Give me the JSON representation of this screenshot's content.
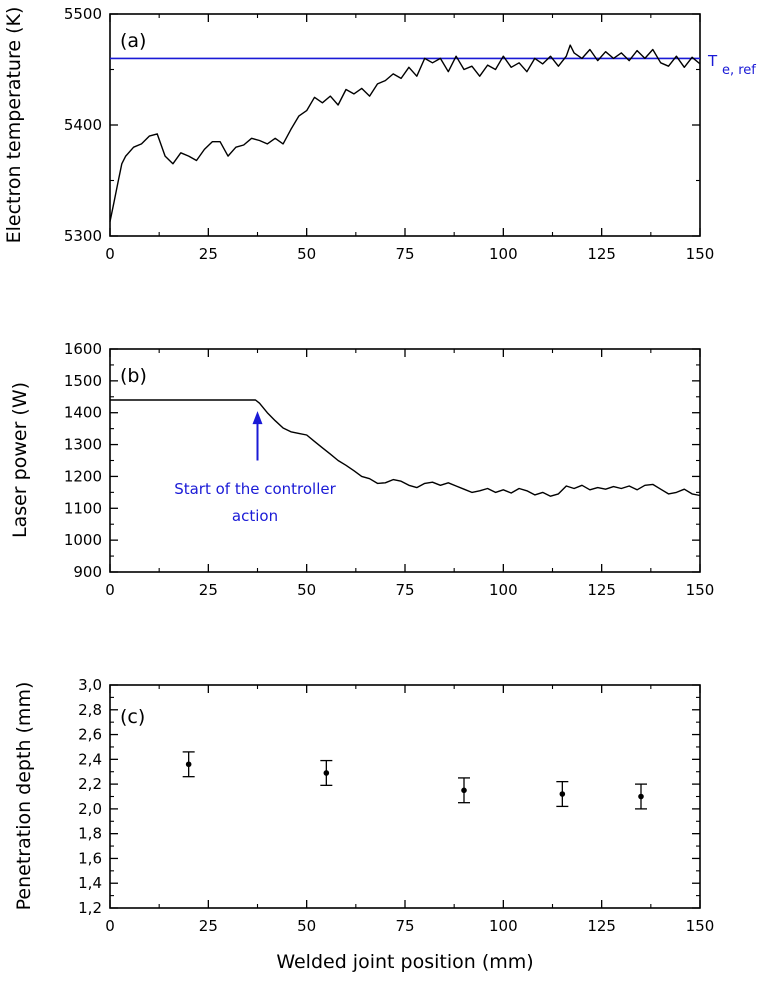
{
  "colors": {
    "reference": "#1a1ad6",
    "annotation": "#1a1ad6",
    "data": "#000000"
  },
  "xlabel": "Welded joint position (mm)",
  "chart_data": [
    {
      "type": "line",
      "panel_label": "(a)",
      "ylabel": "Electron temperature (K)",
      "xlim": [
        0,
        150
      ],
      "ylim": [
        5300,
        5500
      ],
      "xticks": [
        "0",
        "25",
        "50",
        "75",
        "100",
        "125",
        "150"
      ],
      "yticks": [
        "5300",
        "5400",
        "5500"
      ],
      "reference_line": {
        "y": 5460,
        "label_main": "T",
        "label_sub": "e, ref"
      },
      "series": [
        {
          "x": [
            0,
            1,
            2,
            3,
            4,
            6,
            8,
            10,
            12,
            14,
            16,
            18,
            20,
            22,
            24,
            26,
            28,
            30,
            32,
            34,
            36,
            38,
            40,
            42,
            44,
            46,
            48,
            50,
            52,
            54,
            56,
            58,
            60,
            62,
            64,
            66,
            68,
            70,
            72,
            74,
            76,
            78,
            80,
            82,
            84,
            86,
            88,
            90,
            92,
            94,
            96,
            98,
            100,
            102,
            104,
            106,
            108,
            110,
            112,
            114,
            116,
            117,
            118,
            120,
            122,
            124,
            126,
            128,
            130,
            132,
            134,
            136,
            138,
            140,
            142,
            144,
            146,
            148,
            150
          ],
          "y": [
            5313,
            5330,
            5348,
            5365,
            5372,
            5380,
            5383,
            5390,
            5392,
            5372,
            5365,
            5375,
            5372,
            5368,
            5378,
            5385,
            5385,
            5372,
            5380,
            5382,
            5388,
            5386,
            5383,
            5388,
            5383,
            5396,
            5408,
            5413,
            5425,
            5420,
            5426,
            5418,
            5432,
            5428,
            5433,
            5426,
            5437,
            5440,
            5446,
            5442,
            5452,
            5444,
            5460,
            5456,
            5460,
            5448,
            5462,
            5450,
            5453,
            5444,
            5454,
            5450,
            5462,
            5452,
            5456,
            5448,
            5460,
            5455,
            5462,
            5453,
            5462,
            5472,
            5465,
            5460,
            5468,
            5458,
            5466,
            5460,
            5465,
            5458,
            5467,
            5460,
            5468,
            5456,
            5453,
            5462,
            5452,
            5461,
            5455
          ]
        }
      ]
    },
    {
      "type": "line",
      "panel_label": "(b)",
      "ylabel": "Laser power (W)",
      "xlim": [
        0,
        150
      ],
      "ylim": [
        900,
        1600
      ],
      "xticks": [
        "0",
        "25",
        "50",
        "75",
        "100",
        "125",
        "150"
      ],
      "yticks": [
        "900",
        "1000",
        "1100",
        "1200",
        "1300",
        "1400",
        "1500",
        "1600"
      ],
      "annotation": {
        "text_line1": "Start of the controller",
        "text_line2": "action",
        "arrow_x": 37.5,
        "arrow_from_y": 1250,
        "arrow_to_y": 1405
      },
      "series": [
        {
          "x": [
            0,
            10,
            20,
            30,
            36,
            37,
            38,
            40,
            42,
            44,
            46,
            48,
            50,
            52,
            54,
            56,
            58,
            60,
            62,
            64,
            66,
            68,
            70,
            72,
            74,
            76,
            78,
            80,
            82,
            84,
            86,
            88,
            90,
            92,
            94,
            96,
            98,
            100,
            102,
            104,
            106,
            108,
            110,
            112,
            114,
            116,
            118,
            120,
            122,
            124,
            126,
            128,
            130,
            132,
            134,
            136,
            138,
            140,
            142,
            144,
            146,
            148,
            150
          ],
          "y": [
            1440,
            1440,
            1440,
            1440,
            1440,
            1440,
            1430,
            1400,
            1375,
            1352,
            1340,
            1335,
            1330,
            1310,
            1290,
            1270,
            1250,
            1235,
            1218,
            1200,
            1193,
            1178,
            1180,
            1190,
            1185,
            1172,
            1165,
            1178,
            1182,
            1172,
            1180,
            1170,
            1160,
            1150,
            1155,
            1162,
            1150,
            1158,
            1148,
            1162,
            1155,
            1142,
            1150,
            1138,
            1145,
            1170,
            1162,
            1172,
            1158,
            1165,
            1160,
            1168,
            1162,
            1170,
            1158,
            1172,
            1175,
            1160,
            1145,
            1150,
            1160,
            1145,
            1140
          ]
        }
      ]
    },
    {
      "type": "scatter",
      "panel_label": "(c)",
      "ylabel": "Penetration depth (mm)",
      "xlim": [
        0,
        150
      ],
      "ylim": [
        1.2,
        3.0
      ],
      "xticks": [
        "0",
        "25",
        "50",
        "75",
        "100",
        "125",
        "150"
      ],
      "yticks": [
        "1,2",
        "1,4",
        "1,6",
        "1,8",
        "2,0",
        "2,2",
        "2,4",
        "2,6",
        "2,8",
        "3,0"
      ],
      "series": [
        {
          "x": [
            20,
            55,
            90,
            115,
            135
          ],
          "y": [
            2.36,
            2.29,
            2.15,
            2.12,
            2.1
          ],
          "error": [
            0.1,
            0.1,
            0.1,
            0.1,
            0.1
          ]
        }
      ]
    }
  ]
}
